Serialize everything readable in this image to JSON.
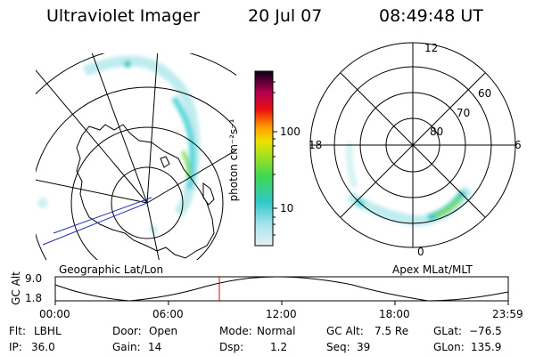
{
  "header": {
    "instrument": "Ultraviolet Imager",
    "date": "20 Jul 07",
    "time": "08:49:48 UT"
  },
  "colorbar": {
    "unit_label": "photon cm⁻²s⁻¹",
    "ticks": [
      "100",
      "10"
    ]
  },
  "left_panel": {
    "label": "Geographic Lat/Lon"
  },
  "right_panel": {
    "label": "Apex MLat/MLT",
    "mlt_labels": [
      "12",
      "18",
      "6",
      "0"
    ],
    "mlat_labels": [
      "60",
      "70",
      "80"
    ]
  },
  "timeline": {
    "ylabel": "GC Alt",
    "y_ticks": [
      "9.0",
      "1.8"
    ],
    "x_ticks": [
      "00:00",
      "06:00",
      "12:00",
      "18:00",
      "23:59"
    ],
    "marker_color": "#e00000"
  },
  "info": {
    "filter_label": "Flt:",
    "filter_value": "LBHL",
    "ip_label": "IP:",
    "ip_value": "36.0",
    "door_label": "Door:",
    "door_value": "Open",
    "gain_label": "Gain:",
    "gain_value": "14",
    "mode_label": "Mode:",
    "mode_value": "Normal",
    "dsp_label": "Dsp:",
    "dsp_value": "1.2",
    "gcalt_label": "GC Alt:",
    "gcalt_value": "7.5 Re",
    "seq_label": "Seq:",
    "seq_value": "39",
    "glat_label": "GLat:",
    "glat_value": "−76.5",
    "glon_label": "GLon:",
    "glon_value": "135.9"
  },
  "colors": {
    "aurora_light": "#bfecef",
    "aurora_mid": "#4fd8d8",
    "aurora_bright": "#7ddc4a",
    "colorbar_stops": [
      "#dce4ec",
      "#38c8c8",
      "#4ad83a",
      "#d8e000",
      "#ff9000",
      "#e00000",
      "#b00050",
      "#100020"
    ]
  }
}
